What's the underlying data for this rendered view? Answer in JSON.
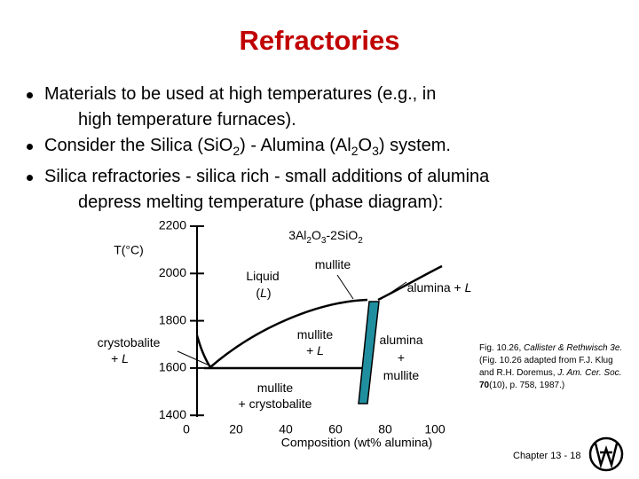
{
  "title": "Refractories",
  "bullets": [
    [
      [
        {
          "text": "Materials to be used at high temperatures (e.g., in"
        }
      ],
      [
        {
          "text": "high temperature furnaces)."
        }
      ]
    ],
    [
      [
        {
          "text": "Consider the Silica (SiO"
        },
        {
          "sub": "2"
        },
        {
          "text": ") - Alumina (Al"
        },
        {
          "sub": "2"
        },
        {
          "text": "O"
        },
        {
          "sub": "3"
        },
        {
          "text": ") system."
        }
      ]
    ],
    [
      [
        {
          "text": "Silica refractories - silica rich - small additions of alumina"
        }
      ],
      [
        {
          "text": "depress melting temperature (phase diagram):"
        }
      ]
    ]
  ],
  "diagram": {
    "y_label": "T(°C)",
    "yticks": [
      2200,
      2000,
      1800,
      1600,
      1400
    ],
    "xticks": [
      0,
      20,
      40,
      60,
      80,
      100
    ],
    "x_label": "Composition (wt% alumina)",
    "regions": [
      [
        [
          {
            "text": "3Al"
          },
          {
            "sub": "2"
          },
          {
            "text": "O"
          },
          {
            "sub": "3"
          },
          {
            "text": "-2SiO"
          },
          {
            "sub": "2"
          }
        ]
      ],
      [
        [
          {
            "text": "mullite"
          }
        ]
      ],
      [
        [
          {
            "text": "Liquid"
          }
        ],
        [
          {
            "text": "("
          },
          {
            "i": "L"
          },
          {
            "text": ")"
          }
        ]
      ],
      [
        [
          {
            "text": "alumina + "
          },
          {
            "i": "L"
          }
        ]
      ],
      [
        [
          {
            "text": "crystobalite"
          }
        ],
        [
          {
            "text": "+ "
          },
          {
            "i": "L"
          }
        ]
      ],
      [
        [
          {
            "text": "mullite"
          }
        ],
        [
          {
            "text": "+ "
          },
          {
            "i": "L"
          }
        ]
      ],
      [
        [
          {
            "text": "alumina"
          }
        ],
        [
          {
            "text": "+"
          }
        ],
        [
          {
            "text": "mullite"
          }
        ]
      ],
      [
        [
          {
            "text": "mullite"
          }
        ],
        [
          {
            "text": "+ crystobalite"
          }
        ]
      ]
    ]
  },
  "caption": [
    {
      "text": "Fig. 10.26, "
    },
    {
      "i": "Callister & Rethwisch 3e."
    },
    {
      "text": " (Fig. 10.26 adapted from F.J. Klug and R.H. Doremus, "
    },
    {
      "i": "J. Am. Cer. Soc."
    },
    {
      "text": " "
    },
    {
      "b": "70"
    },
    {
      "text": "(10), p. 758, 1987.)"
    }
  ],
  "footer": "Chapter 13 - 18"
}
